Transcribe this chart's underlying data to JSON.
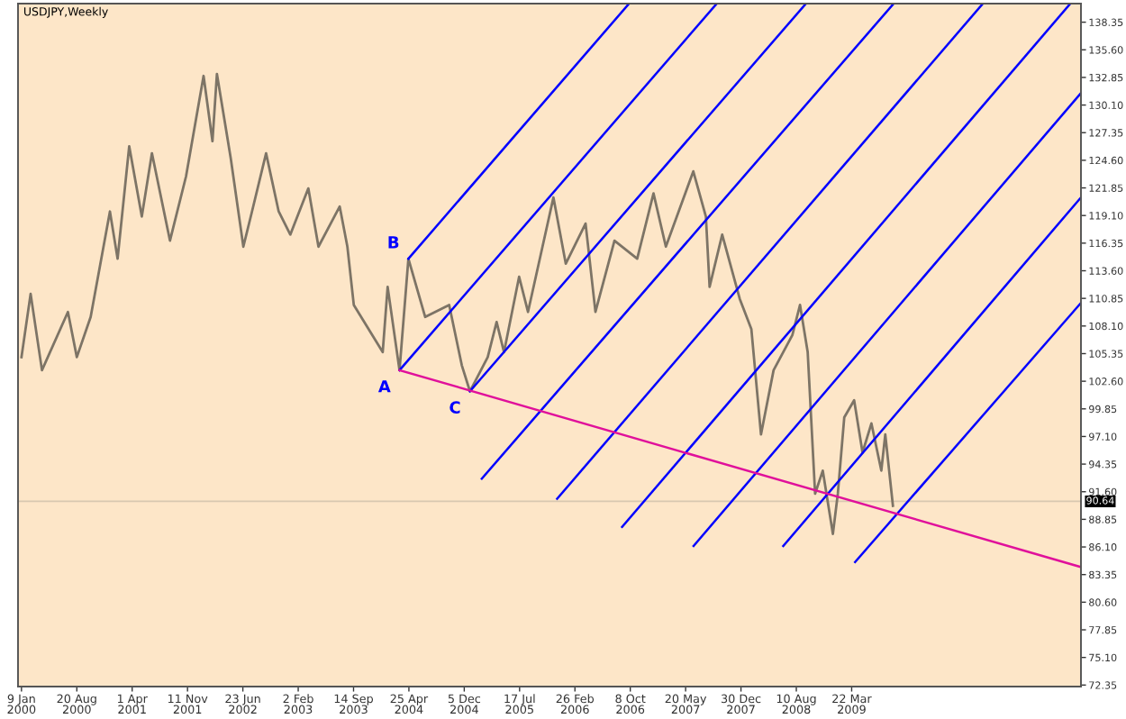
{
  "chart_data": {
    "type": "line",
    "title": "USDJPY,Weekly",
    "xlim": [
      "1999-12-26",
      "2011-10-06"
    ],
    "ylim": [
      72.2,
      140.2
    ],
    "xticks": [
      {
        "value": "2000-01-09",
        "label": "9 Jan 2000"
      },
      {
        "value": "2000-08-20",
        "label": "20 Aug 2000"
      },
      {
        "value": "2001-04-01",
        "label": "1 Apr 2001"
      },
      {
        "value": "2001-11-11",
        "label": "11 Nov 2001"
      },
      {
        "value": "2002-06-23",
        "label": "23 Jun 2002"
      },
      {
        "value": "2003-02-02",
        "label": "2 Feb 2003"
      },
      {
        "value": "2003-09-14",
        "label": "14 Sep 2003"
      },
      {
        "value": "2004-04-25",
        "label": "25 Apr 2004"
      },
      {
        "value": "2004-12-05",
        "label": "5 Dec 2004"
      },
      {
        "value": "2005-07-17",
        "label": "17 Jul 2005"
      },
      {
        "value": "2006-02-26",
        "label": "26 Feb 2006"
      },
      {
        "value": "2006-10-08",
        "label": "8 Oct 2006"
      },
      {
        "value": "2007-05-20",
        "label": "20 May 2007"
      },
      {
        "value": "2007-12-30",
        "label": "30 Dec 2007"
      },
      {
        "value": "2008-08-10",
        "label": "10 Aug 2008"
      },
      {
        "value": "2009-03-22",
        "label": "22 Mar 2009"
      }
    ],
    "yticks": [
      {
        "value": 138.35,
        "label": "138.35"
      },
      {
        "value": 135.6,
        "label": "135.60"
      },
      {
        "value": 132.85,
        "label": "132.85"
      },
      {
        "value": 130.1,
        "label": "130.10"
      },
      {
        "value": 127.35,
        "label": "127.35"
      },
      {
        "value": 124.6,
        "label": "124.60"
      },
      {
        "value": 121.85,
        "label": "121.85"
      },
      {
        "value": 119.1,
        "label": "119.10"
      },
      {
        "value": 116.35,
        "label": "116.35"
      },
      {
        "value": 113.6,
        "label": "113.60"
      },
      {
        "value": 110.85,
        "label": "110.85"
      },
      {
        "value": 108.1,
        "label": "108.10"
      },
      {
        "value": 105.35,
        "label": "105.35"
      },
      {
        "value": 102.6,
        "label": "102.60"
      },
      {
        "value": 99.85,
        "label": "99.85"
      },
      {
        "value": 97.1,
        "label": "97.10"
      },
      {
        "value": 94.35,
        "label": "94.35"
      },
      {
        "value": 91.6,
        "label": "91.60"
      },
      {
        "value": 88.85,
        "label": "88.85"
      },
      {
        "value": 86.1,
        "label": "86.10"
      },
      {
        "value": 83.35,
        "label": "83.35"
      },
      {
        "value": 80.6,
        "label": "80.60"
      },
      {
        "value": 77.85,
        "label": "77.85"
      },
      {
        "value": 75.1,
        "label": "75.10"
      },
      {
        "value": 72.35,
        "label": "72.35"
      }
    ],
    "grid": false,
    "legend": false,
    "marker": "none",
    "line_style": "solid",
    "ref_lines": [
      {
        "axis": "y",
        "value": 90.64,
        "label": "90.64",
        "color": "#d8c8b0"
      }
    ],
    "annotations": [
      {
        "text": "A",
        "x": "2004-03-18",
        "y": 103.7
      },
      {
        "text": "B",
        "x": "2004-04-23",
        "y": 114.8
      },
      {
        "text": "C",
        "x": "2004-12-28",
        "y": 101.6
      }
    ],
    "series": [
      {
        "color": "#7d7466",
        "x": [
          "2000-01-09",
          "2000-02-15",
          "2000-04-01",
          "2000-07-15",
          "2000-08-20",
          "2000-10-15",
          "2001-01-01",
          "2001-02-01",
          "2001-03-20",
          "2001-05-10",
          "2001-06-20",
          "2001-09-01",
          "2001-11-05",
          "2002-01-15",
          "2002-02-20",
          "2002-03-10",
          "2002-05-05",
          "2002-06-25",
          "2002-07-30",
          "2002-09-25",
          "2002-11-15",
          "2003-01-01",
          "2003-03-15",
          "2003-04-25",
          "2003-07-20",
          "2003-08-20",
          "2003-09-15",
          "2004-01-10",
          "2004-01-30",
          "2004-03-18",
          "2004-04-23",
          "2004-06-30",
          "2004-10-05",
          "2004-11-25",
          "2004-12-28",
          "2005-03-10",
          "2005-04-15",
          "2005-05-15",
          "2005-07-15",
          "2005-08-20",
          "2005-12-01",
          "2006-01-20",
          "2006-04-10",
          "2006-05-20",
          "2006-08-05",
          "2006-11-05",
          "2007-01-10",
          "2007-03-01",
          "2007-06-20",
          "2007-08-10",
          "2007-08-25",
          "2007-10-15",
          "2007-12-25",
          "2008-02-10",
          "2008-03-20",
          "2008-05-10",
          "2008-07-25",
          "2008-08-25",
          "2008-09-25",
          "2008-10-25",
          "2008-11-25",
          "2009-01-05",
          "2009-01-25",
          "2009-02-20",
          "2009-04-01",
          "2009-05-05",
          "2009-06-10",
          "2009-07-20",
          "2009-08-05",
          "2009-09-05"
        ],
        "values": [
          105.0,
          111.3,
          103.7,
          109.5,
          105.0,
          109.0,
          119.5,
          114.8,
          126.0,
          119.0,
          125.3,
          116.6,
          123.0,
          133.0,
          126.5,
          133.2,
          124.8,
          116.0,
          119.5,
          125.3,
          119.5,
          117.2,
          121.8,
          116.0,
          120.0,
          116.0,
          110.2,
          105.5,
          112.0,
          103.7,
          114.8,
          109.0,
          110.2,
          104.2,
          101.6,
          105.0,
          108.5,
          105.5,
          113.0,
          109.5,
          120.9,
          114.3,
          118.3,
          109.5,
          116.6,
          114.8,
          121.3,
          116.0,
          123.5,
          119.0,
          112.0,
          117.2,
          110.8,
          107.8,
          97.3,
          103.7,
          107.2,
          110.2,
          105.5,
          91.4,
          93.7,
          87.4,
          91.4,
          99.0,
          100.7,
          95.5,
          98.4,
          93.7,
          97.3,
          90.2
        ]
      },
      {
        "color": "#0000ff",
        "x": [
          "2004-04-23",
          "2006-10-03"
        ],
        "values": [
          114.8,
          140.2
        ]
      },
      {
        "color": "#0000ff",
        "x": [
          "2004-03-18",
          "2007-09-23"
        ],
        "values": [
          103.7,
          140.2
        ]
      },
      {
        "color": "#0000ff",
        "x": [
          "2004-12-28",
          "2008-09-18"
        ],
        "values": [
          101.6,
          140.2
        ]
      },
      {
        "color": "#0000ff",
        "x": [
          "2005-02-14",
          "2009-09-08"
        ],
        "values": [
          92.9,
          140.2
        ]
      },
      {
        "color": "#0000ff",
        "x": [
          "2005-12-16",
          "2010-09-04"
        ],
        "values": [
          90.9,
          140.2
        ]
      },
      {
        "color": "#0000ff",
        "x": [
          "2006-09-05",
          "2011-08-24"
        ],
        "values": [
          88.1,
          140.2
        ]
      },
      {
        "color": "#0000ff",
        "x": [
          "2007-06-21",
          "2011-10-06"
        ],
        "values": [
          86.2,
          131.3
        ]
      },
      {
        "color": "#0000ff",
        "x": [
          "2008-06-18",
          "2011-10-06"
        ],
        "values": [
          86.2,
          120.9
        ]
      },
      {
        "color": "#0000ff",
        "x": [
          "2009-04-05",
          "2011-10-06"
        ],
        "values": [
          84.6,
          110.4
        ]
      },
      {
        "color": "#e0109b",
        "x": [
          "2004-03-18",
          "2011-10-06"
        ],
        "values": [
          103.7,
          84.1
        ]
      }
    ]
  }
}
